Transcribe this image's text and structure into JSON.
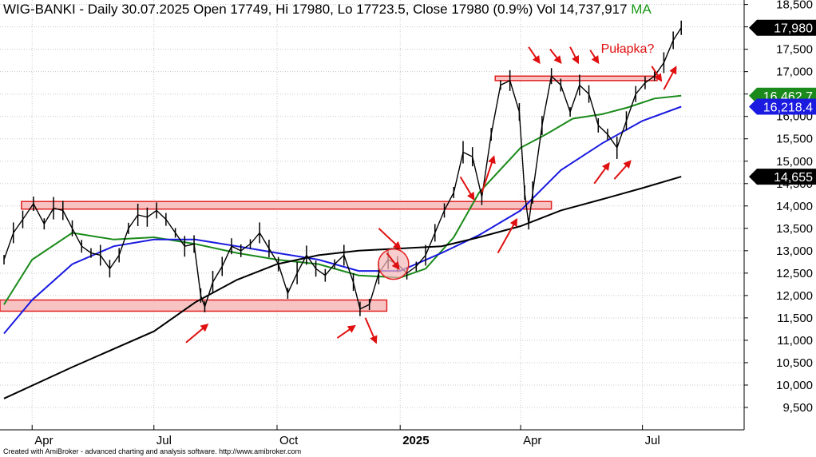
{
  "header": {
    "title": "WIG-BANKI - Daily 30.07.2025 Open 17749, Hi 17980, Lo 17723.5, Close 17980 (0.9%) Vol 14,737,917",
    "ma_label": "MA"
  },
  "footer": {
    "credit": "Created with AmiBroker - advanced charting and analysis software. http://www.amibroker.com"
  },
  "colors": {
    "background": "#ffffff",
    "grid": "#c8c8c8",
    "price": "#000000",
    "ma_short": "#1a8a1a",
    "ma_mid": "#1a1ae0",
    "ma_long": "#000000",
    "zone_fill": "#f7b8b8",
    "zone_stroke": "#e02020",
    "arrow": "#e01010",
    "annotation_text": "#e01010"
  },
  "chart_data": {
    "type": "line",
    "title": "WIG-BANKI - Daily 30.07.2025 Open 17749, Hi 17980, Lo 17723.5, Close 17980 (0.9%) Vol 14,737,917",
    "ylim": [
      9000,
      18600
    ],
    "y_ticks": [
      9500,
      10000,
      10500,
      11000,
      11500,
      12000,
      12500,
      13000,
      13500,
      14000,
      14500,
      15000,
      15500,
      16000,
      16500,
      17000,
      17500,
      18000,
      18500
    ],
    "y_tick_labels": [
      "9,500",
      "10,000",
      "10,500",
      "11,000",
      "11,500",
      "12,000",
      "12,500",
      "13,000",
      "13,500",
      "14,000",
      "14,500",
      "15,000",
      "15,500",
      "16,000",
      "16,500",
      "17,000",
      "17,500",
      "18,000",
      "18,500"
    ],
    "x_tick_labels": [
      "Apr",
      "Jul",
      "Oct",
      "2025",
      "Apr",
      "Jul"
    ],
    "x_tick_dates": [
      "2024-04-01",
      "2024-07-01",
      "2024-10-01",
      "2025-01-01",
      "2025-04-01",
      "2025-07-01"
    ],
    "x_range": [
      "2024-03-08",
      "2025-09-15"
    ],
    "price_key_points": [
      [
        "2024-03-11",
        12800
      ],
      [
        "2024-03-18",
        13400
      ],
      [
        "2024-03-25",
        13700
      ],
      [
        "2024-04-02",
        14050
      ],
      [
        "2024-04-10",
        13600
      ],
      [
        "2024-04-17",
        13950
      ],
      [
        "2024-04-24",
        13900
      ],
      [
        "2024-05-01",
        13500
      ],
      [
        "2024-05-08",
        13100
      ],
      [
        "2024-05-15",
        12950
      ],
      [
        "2024-05-22",
        12900
      ],
      [
        "2024-05-29",
        12600
      ],
      [
        "2024-06-05",
        12900
      ],
      [
        "2024-06-12",
        13500
      ],
      [
        "2024-06-19",
        13800
      ],
      [
        "2024-06-26",
        13750
      ],
      [
        "2024-07-03",
        13900
      ],
      [
        "2024-07-10",
        13700
      ],
      [
        "2024-07-17",
        13400
      ],
      [
        "2024-07-24",
        13100
      ],
      [
        "2024-07-31",
        13150
      ],
      [
        "2024-08-05",
        12000
      ],
      [
        "2024-08-08",
        11750
      ],
      [
        "2024-08-14",
        12300
      ],
      [
        "2024-08-21",
        12650
      ],
      [
        "2024-08-28",
        13100
      ],
      [
        "2024-09-04",
        13000
      ],
      [
        "2024-09-11",
        13150
      ],
      [
        "2024-09-18",
        13400
      ],
      [
        "2024-09-25",
        13050
      ],
      [
        "2024-10-02",
        12700
      ],
      [
        "2024-10-09",
        12050
      ],
      [
        "2024-10-16",
        12500
      ],
      [
        "2024-10-23",
        12900
      ],
      [
        "2024-10-30",
        12600
      ],
      [
        "2024-11-06",
        12450
      ],
      [
        "2024-11-13",
        12700
      ],
      [
        "2024-11-20",
        12900
      ],
      [
        "2024-11-27",
        12300
      ],
      [
        "2024-12-02",
        11700
      ],
      [
        "2024-12-09",
        11800
      ],
      [
        "2024-12-16",
        12500
      ],
      [
        "2024-12-23",
        12800
      ],
      [
        "2024-12-30",
        12700
      ],
      [
        "2025-01-06",
        12500
      ],
      [
        "2025-01-13",
        12650
      ],
      [
        "2025-01-20",
        12900
      ],
      [
        "2025-01-27",
        13400
      ],
      [
        "2025-02-03",
        13900
      ],
      [
        "2025-02-10",
        14300
      ],
      [
        "2025-02-17",
        15200
      ],
      [
        "2025-02-24",
        15100
      ],
      [
        "2025-03-03",
        14200
      ],
      [
        "2025-03-10",
        15600
      ],
      [
        "2025-03-17",
        16700
      ],
      [
        "2025-03-24",
        16800
      ],
      [
        "2025-03-31",
        16100
      ],
      [
        "2025-04-04",
        14300
      ],
      [
        "2025-04-07",
        13600
      ],
      [
        "2025-04-10",
        14300
      ],
      [
        "2025-04-17",
        15800
      ],
      [
        "2025-04-24",
        16900
      ],
      [
        "2025-05-01",
        16700
      ],
      [
        "2025-05-08",
        16100
      ],
      [
        "2025-05-15",
        16700
      ],
      [
        "2025-05-22",
        16500
      ],
      [
        "2025-05-29",
        15800
      ],
      [
        "2025-06-05",
        15600
      ],
      [
        "2025-06-12",
        15300
      ],
      [
        "2025-06-19",
        15900
      ],
      [
        "2025-06-26",
        16500
      ],
      [
        "2025-07-03",
        16750
      ],
      [
        "2025-07-10",
        16900
      ],
      [
        "2025-07-17",
        17200
      ],
      [
        "2025-07-24",
        17700
      ],
      [
        "2025-07-30",
        17980
      ]
    ],
    "series": [
      {
        "name": "MA",
        "color": "#1a8a1a",
        "points": [
          [
            "2024-03-11",
            11800
          ],
          [
            "2024-04-01",
            12800
          ],
          [
            "2024-05-01",
            13400
          ],
          [
            "2024-06-01",
            13250
          ],
          [
            "2024-07-01",
            13300
          ],
          [
            "2024-08-01",
            13150
          ],
          [
            "2024-09-01",
            12950
          ],
          [
            "2024-10-01",
            12800
          ],
          [
            "2024-11-01",
            12700
          ],
          [
            "2024-12-01",
            12450
          ],
          [
            "2025-01-01",
            12400
          ],
          [
            "2025-01-20",
            12600
          ],
          [
            "2025-02-10",
            13300
          ],
          [
            "2025-03-01",
            14300
          ],
          [
            "2025-04-01",
            15300
          ],
          [
            "2025-04-20",
            15600
          ],
          [
            "2025-05-10",
            15950
          ],
          [
            "2025-06-01",
            16050
          ],
          [
            "2025-06-20",
            16200
          ],
          [
            "2025-07-10",
            16400
          ],
          [
            "2025-07-30",
            16462.7
          ]
        ]
      },
      {
        "name": "",
        "color": "#1a1ae0",
        "points": [
          [
            "2024-03-11",
            11150
          ],
          [
            "2024-04-01",
            11900
          ],
          [
            "2024-05-01",
            12700
          ],
          [
            "2024-06-01",
            13100
          ],
          [
            "2024-07-01",
            13250
          ],
          [
            "2024-08-01",
            13250
          ],
          [
            "2024-09-01",
            13100
          ],
          [
            "2024-10-01",
            12950
          ],
          [
            "2024-11-01",
            12800
          ],
          [
            "2024-12-01",
            12550
          ],
          [
            "2025-01-01",
            12550
          ],
          [
            "2025-02-01",
            12950
          ],
          [
            "2025-03-01",
            13350
          ],
          [
            "2025-04-01",
            13900
          ],
          [
            "2025-05-01",
            14800
          ],
          [
            "2025-06-01",
            15400
          ],
          [
            "2025-07-01",
            15900
          ],
          [
            "2025-07-30",
            16218.4
          ]
        ]
      },
      {
        "name": "",
        "color": "#000000",
        "points": [
          [
            "2024-03-11",
            9700
          ],
          [
            "2024-05-01",
            10400
          ],
          [
            "2024-07-01",
            11200
          ],
          [
            "2024-08-01",
            11850
          ],
          [
            "2024-09-01",
            12350
          ],
          [
            "2024-10-01",
            12700
          ],
          [
            "2024-11-01",
            12900
          ],
          [
            "2024-12-01",
            13000
          ],
          [
            "2025-01-01",
            13050
          ],
          [
            "2025-02-01",
            13100
          ],
          [
            "2025-03-01",
            13300
          ],
          [
            "2025-04-01",
            13550
          ],
          [
            "2025-05-01",
            13900
          ],
          [
            "2025-06-01",
            14150
          ],
          [
            "2025-07-01",
            14400
          ],
          [
            "2025-07-30",
            14655
          ]
        ]
      }
    ],
    "value_labels": [
      {
        "text": "17,980",
        "value": 17980,
        "bg": "#000000",
        "fg": "#ffffff"
      },
      {
        "text": "16,462.7",
        "value": 16462.7,
        "bg": "#1a8a1a",
        "fg": "#ffffff"
      },
      {
        "text": "16,218.4",
        "value": 16218.4,
        "bg": "#1a1ae0",
        "fg": "#ffffff"
      },
      {
        "text": "14,655",
        "value": 14655,
        "bg": "#000000",
        "fg": "#ffffff"
      }
    ],
    "zones": [
      {
        "x0": "2024-03-08",
        "x1": "2024-12-22",
        "y0": 11650,
        "y1": 11900
      },
      {
        "x0": "2024-03-24",
        "x1": "2025-04-24",
        "y0": 13930,
        "y1": 14100
      },
      {
        "x0": "2025-03-13",
        "x1": "2025-07-12",
        "y0": 16800,
        "y1": 16900
      }
    ],
    "circle": {
      "date": "2024-12-27",
      "value": 12700
    },
    "annotation": {
      "text": "Pułapka?",
      "date": "2025-05-31",
      "value": 17420
    },
    "arrows": [
      {
        "from": [
          "2024-07-25",
          10950
        ],
        "to": [
          "2024-08-10",
          11350
        ]
      },
      {
        "from": [
          "2024-11-15",
          11050
        ],
        "to": [
          "2024-11-28",
          11320
        ]
      },
      {
        "from": [
          "2024-12-06",
          11500
        ],
        "to": [
          "2024-12-14",
          10950
        ]
      },
      {
        "from": [
          "2024-12-16",
          13500
        ],
        "to": [
          "2025-01-01",
          13050
        ]
      },
      {
        "from": [
          "2024-12-22",
          12950
        ],
        "to": [
          "2024-12-31",
          12600
        ]
      },
      {
        "from": [
          "2025-02-15",
          14650
        ],
        "to": [
          "2025-02-25",
          14150
        ]
      },
      {
        "from": [
          "2025-03-03",
          14300
        ],
        "to": [
          "2025-03-12",
          15100
        ]
      },
      {
        "from": [
          "2025-03-15",
          12950
        ],
        "to": [
          "2025-03-29",
          13700
        ]
      },
      {
        "from": [
          "2025-04-07",
          17550
        ],
        "to": [
          "2025-04-15",
          17200
        ]
      },
      {
        "from": [
          "2025-04-23",
          17500
        ],
        "to": [
          "2025-05-01",
          17200
        ]
      },
      {
        "from": [
          "2025-05-08",
          17550
        ],
        "to": [
          "2025-05-14",
          17200
        ]
      },
      {
        "from": [
          "2025-05-23",
          17480
        ],
        "to": [
          "2025-05-29",
          17200
        ]
      },
      {
        "from": [
          "2025-05-26",
          14500
        ],
        "to": [
          "2025-06-06",
          14950
        ]
      },
      {
        "from": [
          "2025-06-10",
          14600
        ],
        "to": [
          "2025-06-22",
          15000
        ]
      },
      {
        "from": [
          "2025-07-08",
          17120
        ],
        "to": [
          "2025-07-15",
          16800
        ]
      },
      {
        "from": [
          "2025-07-17",
          16600
        ],
        "to": [
          "2025-07-26",
          17100
        ]
      }
    ]
  }
}
